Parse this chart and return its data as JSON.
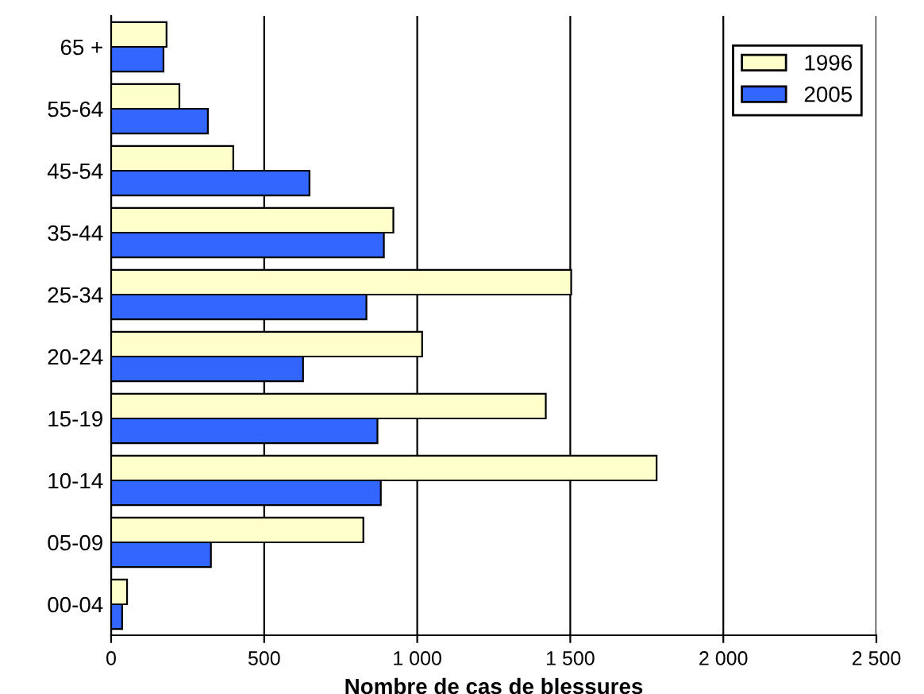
{
  "chart_data": {
    "type": "bar",
    "orientation": "horizontal",
    "xlabel": "Nombre de cas de blessures",
    "categories": [
      "65 +",
      "55-64",
      "45-54",
      "35-44",
      "25-34",
      "20-24",
      "15-19",
      "10-14",
      "05-09",
      "00-04"
    ],
    "series": [
      {
        "name": "1996",
        "color": "#ffffcc",
        "values": [
          181,
          223,
          399,
          922,
          1503,
          1016,
          1420,
          1782,
          824,
          52
        ]
      },
      {
        "name": "2005",
        "color": "#3366ff",
        "values": [
          171,
          316,
          648,
          891,
          834,
          627,
          870,
          881,
          326,
          36
        ]
      }
    ],
    "xlim": [
      0,
      2500
    ],
    "xticks": [
      0,
      500,
      {
        "value": 1000,
        "label": "1 000"
      },
      {
        "value": 1500,
        "label": "1 500"
      },
      {
        "value": 2000,
        "label": "2 000"
      },
      {
        "value": 2500,
        "label": "2 500"
      }
    ],
    "grid": "x",
    "legend": "top right"
  }
}
